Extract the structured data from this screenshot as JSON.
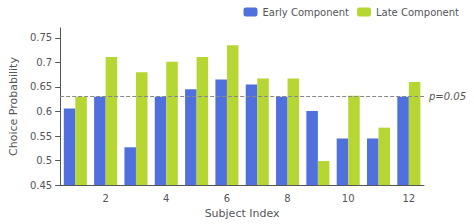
{
  "chart_data": {
    "type": "bar",
    "xlabel": "Subject Index",
    "ylabel": "Choice Probability",
    "categories": [
      null,
      "2",
      null,
      "4",
      null,
      "6",
      null,
      "8",
      null,
      "10",
      null,
      "12"
    ],
    "series": [
      {
        "name": "Early Component",
        "values": [
          0.606,
          0.63,
          0.527,
          0.63,
          0.645,
          0.665,
          0.655,
          0.63,
          0.601,
          0.545,
          0.545,
          0.63
        ]
      },
      {
        "name": "Late Component",
        "values": [
          0.63,
          0.711,
          0.68,
          0.701,
          0.711,
          0.735,
          0.667,
          0.667,
          0.499,
          0.632,
          0.567,
          0.66
        ]
      }
    ],
    "ylim": [
      0.45,
      0.77
    ],
    "yticks": [
      0.45,
      0.5,
      0.55,
      0.6,
      0.65,
      0.7,
      0.75
    ],
    "grid": false,
    "legend": "upper right",
    "annotations": [
      {
        "text": "p=0.05",
        "y": 0.632,
        "line_style": "dashed"
      }
    ]
  }
}
